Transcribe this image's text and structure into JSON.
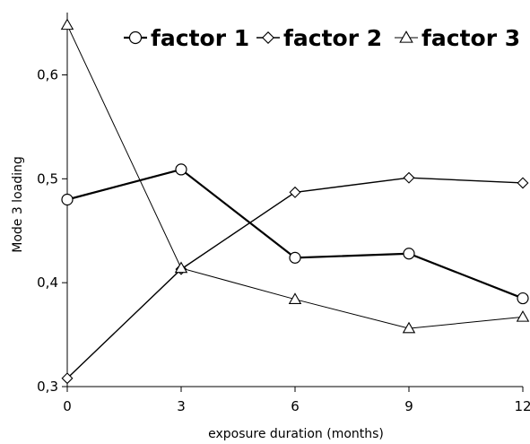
{
  "chart_data": {
    "type": "line",
    "title": "",
    "xlabel": "exposure duration (months)",
    "ylabel": "Mode 3 loading",
    "x": [
      0,
      3,
      6,
      9,
      12
    ],
    "x_ticks": [
      "0",
      "3",
      "6",
      "9",
      "12"
    ],
    "xlim": [
      0,
      12
    ],
    "y_ticks": [
      "0,3",
      "0,4",
      "0,5",
      "0,6"
    ],
    "y_tick_values": [
      0.3,
      0.4,
      0.5,
      0.6
    ],
    "ylim": [
      0.3,
      0.66
    ],
    "grid": false,
    "legend_position": "top",
    "series": [
      {
        "name": "factor 1",
        "marker": "circle",
        "values": [
          0.48,
          0.509,
          0.424,
          0.428,
          0.385
        ]
      },
      {
        "name": "factor 2",
        "marker": "diamond",
        "values": [
          0.308,
          0.413,
          0.487,
          0.501,
          0.496
        ]
      },
      {
        "name": "factor 3",
        "marker": "triangle",
        "values": [
          0.648,
          0.414,
          0.384,
          0.356,
          0.367
        ]
      }
    ]
  }
}
